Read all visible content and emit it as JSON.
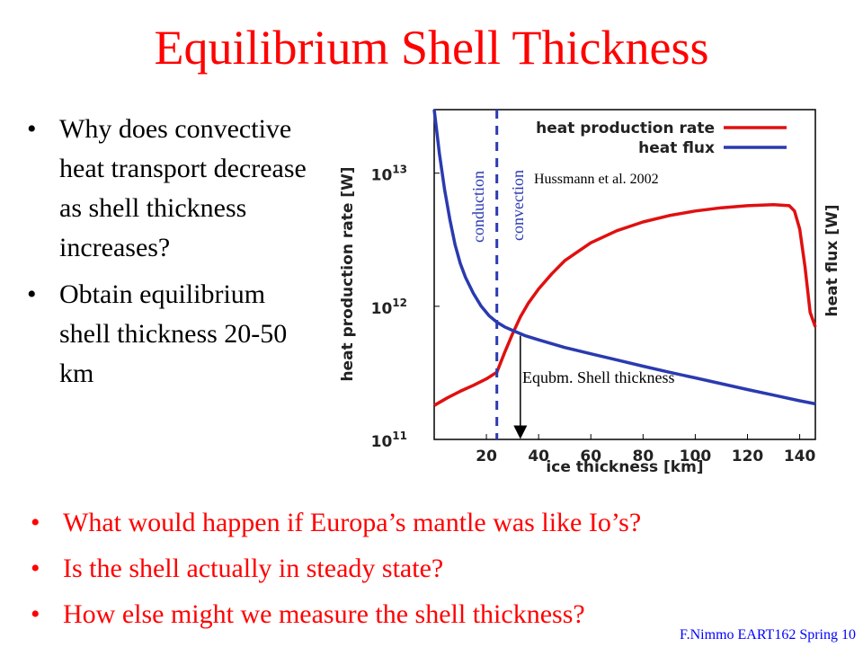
{
  "slide": {
    "title": "Equilibrium Shell Thickness",
    "bullets": [
      "Why does convective heat transport decrease as shell thickness increases?",
      "Obtain equilibrium shell thickness  20-50 km"
    ],
    "questions": [
      "What would happen if Europa’s mantle was like Io’s?",
      "Is the shell actually in steady state?",
      "How else might we measure the shell thickness?"
    ],
    "footer": "F.Nimmo EART162 Spring 10",
    "colors": {
      "title": "#ff0000",
      "questions": "#ff0000",
      "footer": "#0000ff"
    }
  },
  "chart_data": {
    "type": "line",
    "xlabel": "ice thickness [km]",
    "ylabel": "heat production rate [W]",
    "y2label": "heat flux [W]",
    "xlim": [
      0,
      146
    ],
    "ylim": [
      100000000000,
      30000000000000
    ],
    "yscale": "log",
    "xticks": [
      "20",
      "40",
      "60",
      "80",
      "100",
      "120",
      "140"
    ],
    "yticks": [
      "10^11",
      "10^12",
      "10^13"
    ],
    "series": [
      {
        "name": "heat production rate",
        "color": "#e01010",
        "x": [
          0,
          5,
          10,
          15,
          20,
          24,
          27,
          30,
          33,
          36,
          40,
          45,
          50,
          60,
          70,
          80,
          90,
          100,
          110,
          120,
          130,
          136,
          138,
          140,
          142,
          144,
          146
        ],
        "y": [
          180000000000,
          205000000000,
          230000000000,
          255000000000,
          285000000000,
          320000000000,
          450000000000,
          620000000000,
          830000000000,
          1050000000000,
          1350000000000,
          1750000000000,
          2200000000000,
          3000000000000,
          3700000000000,
          4300000000000,
          4800000000000,
          5200000000000,
          5500000000000,
          5700000000000,
          5800000000000,
          5700000000000,
          5200000000000,
          3800000000000,
          2000000000000,
          900000000000,
          700000000000
        ]
      },
      {
        "name": "heat flux",
        "color": "#2a3ab0",
        "x": [
          0,
          2,
          4,
          6,
          8,
          10,
          12,
          15,
          18,
          21,
          24,
          27,
          30,
          35,
          40,
          50,
          60,
          70,
          80,
          90,
          100,
          110,
          120,
          130,
          140,
          146
        ],
        "y": [
          30000000000000,
          14000000000000,
          7500000000000,
          4500000000000,
          2900000000000,
          2100000000000,
          1650000000000,
          1250000000000,
          1000000000000,
          850000000000,
          760000000000,
          700000000000,
          660000000000,
          600000000000,
          560000000000,
          490000000000,
          440000000000,
          395000000000,
          355000000000,
          320000000000,
          290000000000,
          262000000000,
          237000000000,
          215000000000,
          195000000000,
          185000000000
        ]
      }
    ],
    "annotations": {
      "conduction": "conduction",
      "convection": "convection",
      "citation": "Hussmann et al. 2002",
      "equilibrium": "Equbm. Shell thickness",
      "divider_x_km": 24,
      "equilibrium_x_km": 33
    }
  }
}
